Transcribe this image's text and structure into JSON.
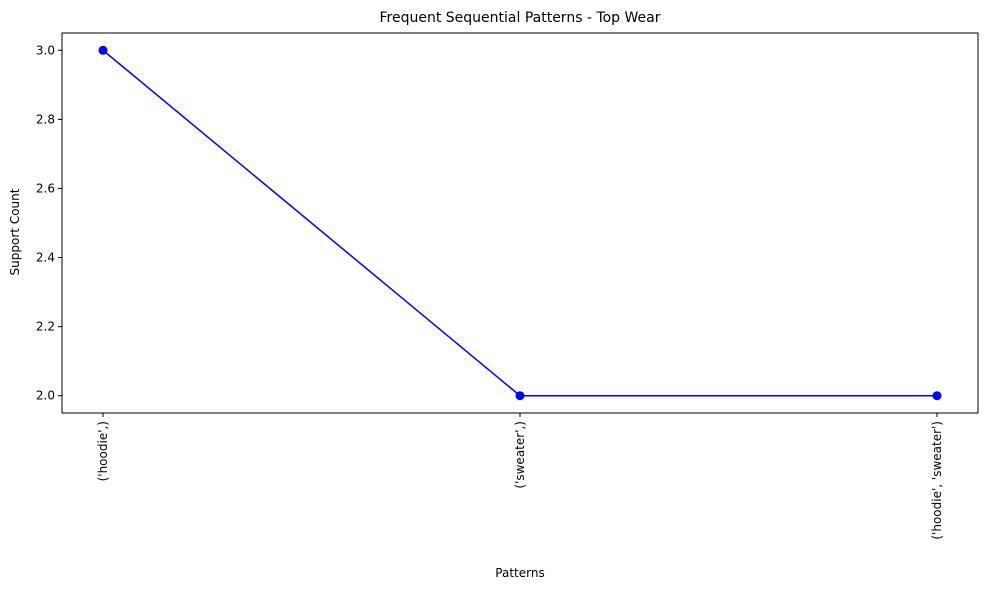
{
  "chart_data": {
    "type": "line",
    "title": "Frequent Sequential Patterns - Top Wear",
    "xlabel": "Patterns",
    "ylabel": "Support Count",
    "categories": [
      "('hoodie',)",
      "('sweater',)",
      "('hoodie', 'sweater')"
    ],
    "series": [
      {
        "values": [
          3,
          2,
          2
        ],
        "color": "#0000ff",
        "marker": "circle"
      }
    ],
    "ylim": [
      1.95,
      3.05
    ],
    "yticks": [
      2.0,
      2.2,
      2.4,
      2.6,
      2.8,
      3.0
    ],
    "ytick_labels": [
      "2.0",
      "2.2",
      "2.4",
      "2.6",
      "2.8",
      "3.0"
    ],
    "xtick_rotation": "vertical",
    "grid": false,
    "legend": "none"
  }
}
